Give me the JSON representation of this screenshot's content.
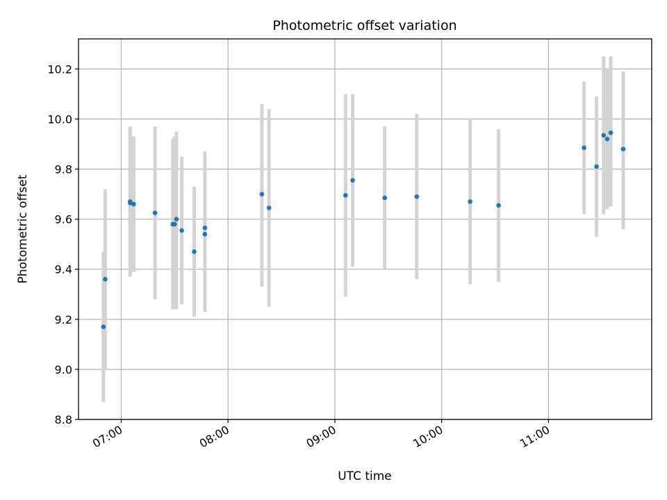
{
  "chart_data": {
    "type": "scatter",
    "title": "Photometric offset variation",
    "xlabel": "UTC time",
    "ylabel": "Photometric offset",
    "x_ticks": [
      "07:00",
      "08:00",
      "09:00",
      "10:00",
      "11:00"
    ],
    "y_ticks": [
      "8.8",
      "9.0",
      "9.2",
      "9.4",
      "9.6",
      "9.8",
      "10.0",
      "10.2"
    ],
    "xlim": [
      "06:36",
      "11:58"
    ],
    "ylim": [
      8.8,
      10.32
    ],
    "grid": true,
    "colors": {
      "points": "#1f77b4",
      "errorbars": "#d3d3d3",
      "grid": "#b0b0b0"
    },
    "points": [
      {
        "t": "06:50",
        "y": 9.17,
        "lo": 8.87,
        "hi": 9.47
      },
      {
        "t": "06:51",
        "y": 9.36,
        "lo": 9.0,
        "hi": 9.72
      },
      {
        "t": "07:05",
        "y": 9.67,
        "lo": 9.38,
        "hi": 9.97
      },
      {
        "t": "07:05",
        "y": 9.665,
        "lo": 9.37,
        "hi": 9.96
      },
      {
        "t": "07:07",
        "y": 9.66,
        "lo": 9.39,
        "hi": 9.93
      },
      {
        "t": "07:19",
        "y": 9.625,
        "lo": 9.28,
        "hi": 9.97
      },
      {
        "t": "07:29",
        "y": 9.58,
        "lo": 9.24,
        "hi": 9.92
      },
      {
        "t": "07:30",
        "y": 9.58,
        "lo": 9.24,
        "hi": 9.93
      },
      {
        "t": "07:31",
        "y": 9.6,
        "lo": 9.24,
        "hi": 9.95
      },
      {
        "t": "07:34",
        "y": 9.555,
        "lo": 9.26,
        "hi": 9.85
      },
      {
        "t": "07:41",
        "y": 9.47,
        "lo": 9.21,
        "hi": 9.73
      },
      {
        "t": "07:47",
        "y": 9.54,
        "lo": 9.23,
        "hi": 9.83
      },
      {
        "t": "07:47",
        "y": 9.565,
        "lo": 9.26,
        "hi": 9.87
      },
      {
        "t": "08:19",
        "y": 9.7,
        "lo": 9.33,
        "hi": 10.06
      },
      {
        "t": "08:23",
        "y": 9.645,
        "lo": 9.25,
        "hi": 10.04
      },
      {
        "t": "09:06",
        "y": 9.695,
        "lo": 9.29,
        "hi": 10.1
      },
      {
        "t": "09:10",
        "y": 9.755,
        "lo": 9.41,
        "hi": 10.1
      },
      {
        "t": "09:28",
        "y": 9.685,
        "lo": 9.4,
        "hi": 9.97
      },
      {
        "t": "09:46",
        "y": 9.69,
        "lo": 9.36,
        "hi": 10.02
      },
      {
        "t": "10:16",
        "y": 9.67,
        "lo": 9.34,
        "hi": 10.0
      },
      {
        "t": "10:32",
        "y": 9.655,
        "lo": 9.35,
        "hi": 9.96
      },
      {
        "t": "11:20",
        "y": 9.885,
        "lo": 9.62,
        "hi": 10.15
      },
      {
        "t": "11:27",
        "y": 9.81,
        "lo": 9.53,
        "hi": 10.09
      },
      {
        "t": "11:31",
        "y": 9.935,
        "lo": 9.62,
        "hi": 10.25
      },
      {
        "t": "11:33",
        "y": 9.92,
        "lo": 9.64,
        "hi": 10.2
      },
      {
        "t": "11:35",
        "y": 9.945,
        "lo": 9.65,
        "hi": 10.25
      },
      {
        "t": "11:42",
        "y": 9.88,
        "lo": 9.56,
        "hi": 10.19
      }
    ]
  }
}
